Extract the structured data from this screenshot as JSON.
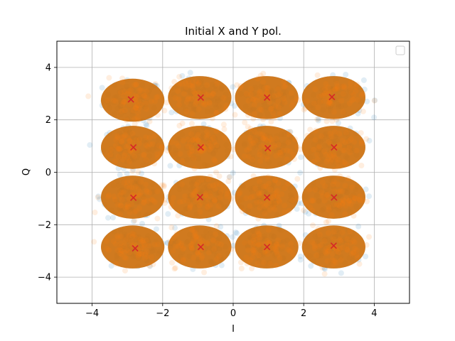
{
  "chart_data": {
    "type": "scatter",
    "title": "Initial X and Y pol.",
    "xlabel": "I",
    "ylabel": "Q",
    "xlim": [
      -5,
      5
    ],
    "ylim": [
      -5,
      5
    ],
    "xticks": [
      -4,
      -2,
      0,
      2,
      4
    ],
    "yticks": [
      -4,
      -2,
      0,
      2,
      4
    ],
    "xtick_labels": [
      "−4",
      "−2",
      "0",
      "2",
      "4"
    ],
    "ytick_labels": [
      "−4",
      "−2",
      "0",
      "2",
      "4"
    ],
    "grid": true,
    "legend": {
      "placement": "top-right",
      "entries": []
    },
    "series": [
      {
        "marker": "circle",
        "color": "#1f77b4",
        "opacity": 0.06,
        "clusters": [
          [
            -2.85,
            2.75
          ],
          [
            -0.95,
            2.85
          ],
          [
            0.95,
            2.85
          ],
          [
            2.85,
            2.85
          ],
          [
            -2.85,
            0.95
          ],
          [
            -0.95,
            0.95
          ],
          [
            0.95,
            0.95
          ],
          [
            2.85,
            0.95
          ],
          [
            -2.85,
            -0.95
          ],
          [
            -0.95,
            -0.95
          ],
          [
            0.95,
            -0.95
          ],
          [
            2.85,
            -0.95
          ],
          [
            -2.85,
            -2.85
          ],
          [
            -0.95,
            -2.85
          ],
          [
            0.95,
            -2.85
          ],
          [
            2.85,
            -2.85
          ]
        ]
      },
      {
        "marker": "circle",
        "color": "#ff7f0e",
        "opacity": 0.06,
        "clusters": [
          [
            -2.85,
            2.75
          ],
          [
            -0.95,
            2.85
          ],
          [
            0.95,
            2.85
          ],
          [
            2.85,
            2.85
          ],
          [
            -2.85,
            0.95
          ],
          [
            -0.95,
            0.95
          ],
          [
            0.95,
            0.95
          ],
          [
            2.85,
            0.95
          ],
          [
            -2.85,
            -0.95
          ],
          [
            -0.95,
            -0.95
          ],
          [
            0.95,
            -0.95
          ],
          [
            2.85,
            -0.95
          ],
          [
            -2.85,
            -2.85
          ],
          [
            -0.95,
            -2.85
          ],
          [
            0.95,
            -2.85
          ],
          [
            2.85,
            -2.85
          ]
        ]
      },
      {
        "marker": "x",
        "color": "#d62728",
        "points": [
          [
            -2.9,
            2.78
          ],
          [
            -0.92,
            2.85
          ],
          [
            0.96,
            2.85
          ],
          [
            2.8,
            2.87
          ],
          [
            -2.83,
            0.95
          ],
          [
            -0.92,
            0.95
          ],
          [
            0.98,
            0.92
          ],
          [
            2.86,
            0.95
          ],
          [
            -2.83,
            -0.97
          ],
          [
            -0.94,
            -0.95
          ],
          [
            0.96,
            -0.96
          ],
          [
            2.86,
            -0.96
          ],
          [
            -2.78,
            -2.9
          ],
          [
            -0.92,
            -2.85
          ],
          [
            0.96,
            -2.85
          ],
          [
            2.85,
            -2.8
          ]
        ]
      }
    ]
  }
}
